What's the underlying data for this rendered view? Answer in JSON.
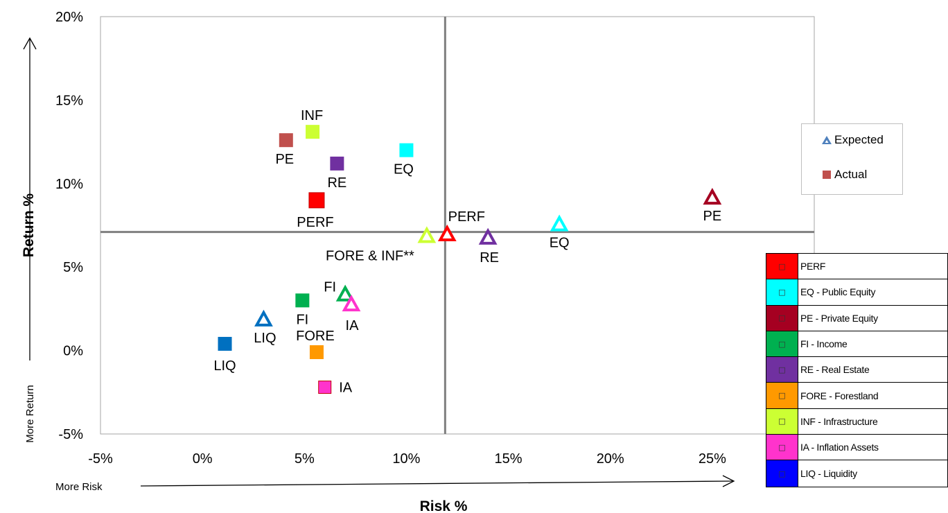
{
  "chart_data": {
    "type": "scatter",
    "title": "",
    "xlabel": "Risk %",
    "ylabel": "Return %",
    "x_arrow_label": "More Risk",
    "y_arrow_label": "More Return",
    "xlim": [
      -5,
      30
    ],
    "ylim": [
      -5,
      20
    ],
    "xticks": [
      "-5%",
      "0%",
      "5%",
      "10%",
      "15%",
      "20%",
      "25%"
    ],
    "yticks": [
      "-5%",
      "0%",
      "5%",
      "10%",
      "15%",
      "20%"
    ],
    "reference_lines": {
      "x": 11.9,
      "y": 7.1
    },
    "series": [
      {
        "name": "Expected",
        "marker": "triangle",
        "points": [
          {
            "label": "PERF",
            "x": 12.0,
            "y": 7.0,
            "color": "#ff0000"
          },
          {
            "label": "EQ",
            "x": 17.5,
            "y": 7.6,
            "color": "#00ffff"
          },
          {
            "label": "PE",
            "x": 25.0,
            "y": 9.2,
            "color": "#a50021"
          },
          {
            "label": "FI",
            "x": 7.0,
            "y": 3.4,
            "color": "#00b050"
          },
          {
            "label": "RE",
            "x": 14.0,
            "y": 6.8,
            "color": "#7030a0"
          },
          {
            "label": "FORE & INF**",
            "x": 11.0,
            "y": 6.9,
            "color": "#ccff33"
          },
          {
            "label": "IA",
            "x": 7.3,
            "y": 2.8,
            "color": "#ff33cc"
          },
          {
            "label": "LIQ",
            "x": 3.0,
            "y": 1.9,
            "color": "#0070c0"
          }
        ]
      },
      {
        "name": "Actual",
        "marker": "square",
        "points": [
          {
            "label": "PERF",
            "x": 5.6,
            "y": 9.0,
            "color": "#ff0000"
          },
          {
            "label": "EQ",
            "x": 10.0,
            "y": 12.0,
            "color": "#00ffff"
          },
          {
            "label": "PE",
            "x": 4.1,
            "y": 12.6,
            "color": "#c0504d"
          },
          {
            "label": "FI",
            "x": 4.9,
            "y": 3.0,
            "color": "#00b050"
          },
          {
            "label": "RE",
            "x": 6.6,
            "y": 11.2,
            "color": "#7030a0"
          },
          {
            "label": "FORE",
            "x": 5.6,
            "y": -0.1,
            "color": "#ff9900"
          },
          {
            "label": "INF",
            "x": 5.4,
            "y": 13.1,
            "color": "#ccff33"
          },
          {
            "label": "IA",
            "x": 6.0,
            "y": -2.2,
            "color": "#ff33cc"
          },
          {
            "label": "LIQ",
            "x": 1.1,
            "y": 0.4,
            "color": "#0070c0"
          }
        ]
      }
    ],
    "key_legend": [
      {
        "name": "Expected",
        "marker": "triangle",
        "color": "#4f81bd"
      },
      {
        "name": "Actual",
        "marker": "square",
        "color": "#c0504d"
      }
    ]
  },
  "asset_legend": [
    {
      "symbol": "□",
      "text": "PERF",
      "color": "#ff0000"
    },
    {
      "symbol": "□",
      "text": "EQ - Public Equity",
      "color": "#00ffff"
    },
    {
      "symbol": "□",
      "text": "PE - Private Equity",
      "color": "#a50021"
    },
    {
      "symbol": "□",
      "text": "FI - Income",
      "color": "#00b050"
    },
    {
      "symbol": "□",
      "text": "RE - Real Estate",
      "color": "#7030a0"
    },
    {
      "symbol": "□",
      "text": "FORE - Forestland",
      "color": "#ff9900"
    },
    {
      "symbol": "□",
      "text": "INF - Infrastructure",
      "color": "#ccff33"
    },
    {
      "symbol": "□",
      "text": "IA - Inflation Assets",
      "color": "#ff33cc"
    },
    {
      "symbol": "□",
      "text": "LIQ - Liquidity",
      "color": "#0000ff"
    }
  ]
}
